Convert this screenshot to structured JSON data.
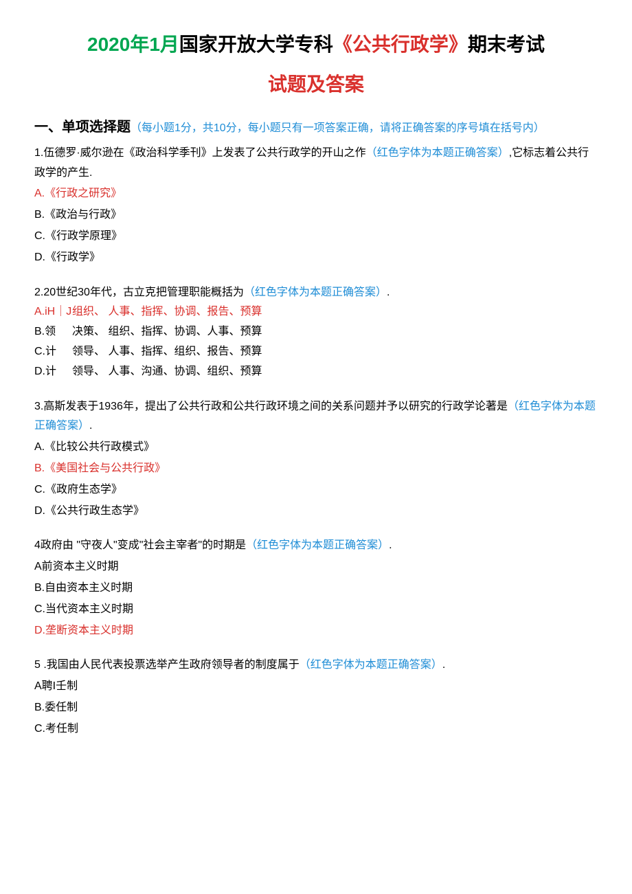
{
  "title": {
    "part_green": "2020年1月",
    "part_black1": "国家开放大学专科",
    "part_red_punct": "《公共行政学》",
    "part_black2": "期末考试",
    "line2": "试题及答案"
  },
  "section1": {
    "heading_num": "一、单项选择题",
    "heading_blue": "（每小题1分，共10分，每小题只有一项答案正确，请将正确答案的序号填在括号内）"
  },
  "q1": {
    "pre": "1.伍德罗·威尔逊在《政治科学季刊》上发表了公共行政学的开山之作",
    "hint": "（红色字体为本题正确答案）",
    "post": ",它标志着公共行政学的产生.",
    "optA": "A.《行政之研究》",
    "optB": "B.《政治与行政》",
    "optC": "C.《行政学原理》",
    "optD": "D.《行政学》"
  },
  "q2": {
    "pre": "2.20世纪30年代，古立克把管理职能概括为",
    "hint": "（红色字体为本题正确答案）",
    "post": ".",
    "leftA": "A.iH｜J",
    "rightA": "组织、 人事、指挥、协调、报告、预算",
    "leftB": "B.领",
    "rightB": "决策、 组织、指挥、协调、人事、预算",
    "leftC": "C.计",
    "rightC": "领导、 人事、指挥、组织、报告、预算",
    "leftD": "D.计",
    "rightD": "领导、 人事、沟通、协调、组织、预算"
  },
  "q3": {
    "pre": "3.高斯发表于1936年，提出了公共行政和公共行政环境之间的关系问题并予以研究的行政学论著是",
    "hint": "（红色字体为本题正确答案）",
    "post": ".",
    "optA": "A.《比较公共行政模式》",
    "optB": "B.《美国社会与公共行政》",
    "optC": "C.《政府生态学》",
    "optD": "D.《公共行政生态学》"
  },
  "q4": {
    "pre": "4政府由  \"守夜人\"变成\"社会主宰者\"的时期是",
    "hint": "（红色字体为本题正确答案）",
    "post": ".",
    "optA": "A前资本主义时期",
    "optB": "B.自由资本主义时期",
    "optC": "C.当代资本主义时期",
    "optD": "D.垄断资本主义时期"
  },
  "q5": {
    "pre": "5   .我国由人民代表投票选举产生政府领导者的制度属于",
    "hint": "（红色字体为本题正确答案）",
    "post": ".",
    "optA": "A聘I壬制",
    "optB": "B.委任制",
    "optC": "C.考任制"
  },
  "colors": {
    "green": "#00a650",
    "red": "#d9302c",
    "blue": "#1f8dd6",
    "black": "#000000",
    "background": "#ffffff"
  },
  "typography": {
    "title_fontsize": 28,
    "body_fontsize": 16,
    "line_height": 1.8
  }
}
